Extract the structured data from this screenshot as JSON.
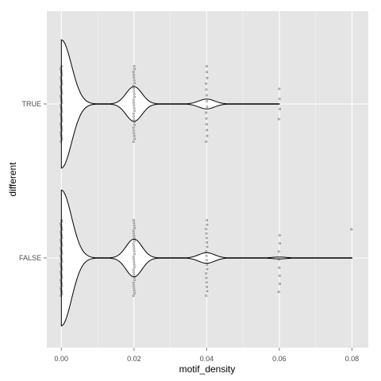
{
  "chart_data": {
    "type": "violin",
    "xlabel": "motif_density",
    "ylabel": "different",
    "xlim": [
      -0.004,
      0.0845
    ],
    "x_ticks": [
      0.0,
      0.02,
      0.04,
      0.06,
      0.08
    ],
    "x_tick_labels": [
      "0.00",
      "0.02",
      "0.04",
      "0.06",
      "0.08"
    ],
    "categories": [
      "TRUE",
      "FALSE"
    ],
    "grid": true,
    "legend": "none",
    "colors": {
      "panel": "#e5e5e5",
      "grid_major": "#ffffff",
      "grid_minor": "#f2f2f2",
      "violin_fill": "#ffffff",
      "violin_stroke": "#000000",
      "points": "#000000"
    },
    "series": [
      {
        "name": "TRUE",
        "x_max": 0.06,
        "density_peaks": [
          {
            "x": 0.0,
            "height": 0.85,
            "sigma": 0.0028
          },
          {
            "x": 0.02,
            "height": 0.23,
            "sigma": 0.0022
          },
          {
            "x": 0.04,
            "height": 0.065,
            "sigma": 0.0022
          },
          {
            "x": 0.06,
            "height": 0.0,
            "sigma": 0.0015
          }
        ],
        "point_groups": [
          {
            "x": 0.0,
            "ymin": -0.5,
            "ymax": 0.5,
            "count": 42
          },
          {
            "x": 0.02,
            "ymin": -0.5,
            "ymax": 0.5,
            "count": 28
          },
          {
            "x": 0.04,
            "ymin": -0.5,
            "ymax": 0.5,
            "count": 14
          },
          {
            "x": 0.06,
            "ymin": -0.2,
            "ymax": 0.2,
            "count": 4
          }
        ]
      },
      {
        "name": "FALSE",
        "x_max": 0.08,
        "density_peaks": [
          {
            "x": 0.0,
            "height": 0.9,
            "sigma": 0.0028
          },
          {
            "x": 0.02,
            "height": 0.25,
            "sigma": 0.0022
          },
          {
            "x": 0.04,
            "height": 0.07,
            "sigma": 0.0022
          },
          {
            "x": 0.06,
            "height": 0.012,
            "sigma": 0.002
          }
        ],
        "point_groups": [
          {
            "x": 0.0,
            "ymin": -0.5,
            "ymax": 0.5,
            "count": 48
          },
          {
            "x": 0.02,
            "ymin": -0.5,
            "ymax": 0.5,
            "count": 30
          },
          {
            "x": 0.04,
            "ymin": -0.5,
            "ymax": 0.5,
            "count": 18
          },
          {
            "x": 0.06,
            "ymin": -0.45,
            "ymax": 0.3,
            "count": 8
          },
          {
            "x": 0.08,
            "ymin": 0.38,
            "ymax": 0.38,
            "count": 1
          }
        ]
      }
    ]
  }
}
